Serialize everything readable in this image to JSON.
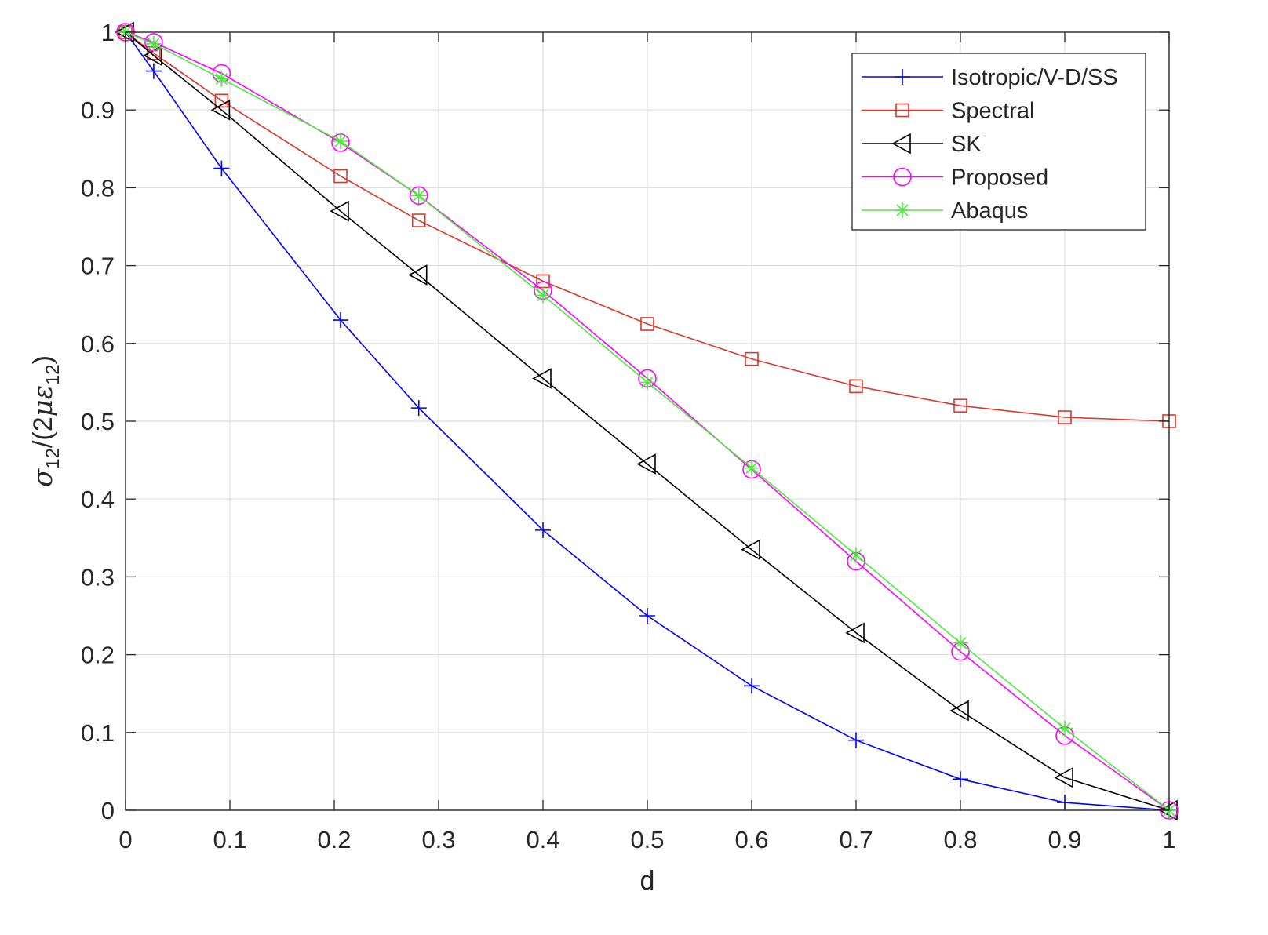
{
  "chart_data": {
    "type": "line",
    "xlabel": "d",
    "ylabel": {
      "sigma": "σ",
      "sub12": "12",
      "mid": "/(2",
      "mueps": "με",
      "sub12b": "12",
      "close": ")"
    },
    "xlim": [
      0,
      1
    ],
    "ylim": [
      0,
      1
    ],
    "xticks": [
      "0",
      "0.1",
      "0.2",
      "0.3",
      "0.4",
      "0.5",
      "0.6",
      "0.7",
      "0.8",
      "0.9",
      "1"
    ],
    "yticks": [
      "0",
      "0.1",
      "0.2",
      "0.3",
      "0.4",
      "0.5",
      "0.6",
      "0.7",
      "0.8",
      "0.9",
      "1"
    ],
    "grid": true,
    "legend_position": "top-right",
    "series": [
      {
        "name": "Isotropic/V-D/SS",
        "color": "#0000ff",
        "marker": "plus",
        "x": [
          0,
          0.027,
          0.092,
          0.206,
          0.281,
          0.4,
          0.5,
          0.6,
          0.7,
          0.8,
          0.9,
          1
        ],
        "y": [
          1,
          0.95,
          0.825,
          0.63,
          0.517,
          0.36,
          0.25,
          0.16,
          0.09,
          0.04,
          0.01,
          0
        ]
      },
      {
        "name": "Spectral",
        "color": "#d9382b",
        "marker": "square",
        "x": [
          0,
          0.027,
          0.092,
          0.206,
          0.281,
          0.4,
          0.5,
          0.6,
          0.7,
          0.8,
          0.9,
          1
        ],
        "y": [
          1,
          0.973,
          0.912,
          0.815,
          0.758,
          0.68,
          0.625,
          0.58,
          0.545,
          0.52,
          0.505,
          0.5
        ]
      },
      {
        "name": "SK",
        "color": "#000000",
        "marker": "triangle-left",
        "x": [
          0,
          0.027,
          0.092,
          0.206,
          0.281,
          0.4,
          0.5,
          0.6,
          0.7,
          0.8,
          0.9,
          1
        ],
        "y": [
          1,
          0.97,
          0.9,
          0.77,
          0.688,
          0.555,
          0.445,
          0.335,
          0.228,
          0.128,
          0.042,
          0
        ]
      },
      {
        "name": "Proposed",
        "color": "#ff00ff",
        "marker": "circle",
        "x": [
          0,
          0.027,
          0.092,
          0.206,
          0.281,
          0.4,
          0.5,
          0.6,
          0.7,
          0.8,
          0.9,
          1
        ],
        "y": [
          1,
          0.987,
          0.947,
          0.858,
          0.79,
          0.668,
          0.555,
          0.438,
          0.32,
          0.204,
          0.096,
          0
        ]
      },
      {
        "name": "Abaqus",
        "color": "#4dea3e",
        "marker": "asterisk",
        "x": [
          0,
          0.027,
          0.092,
          0.206,
          0.281,
          0.4,
          0.5,
          0.6,
          0.7,
          0.8,
          0.9,
          1
        ],
        "y": [
          1,
          0.985,
          0.94,
          0.86,
          0.79,
          0.662,
          0.55,
          0.44,
          0.328,
          0.215,
          0.105,
          0
        ]
      }
    ]
  }
}
